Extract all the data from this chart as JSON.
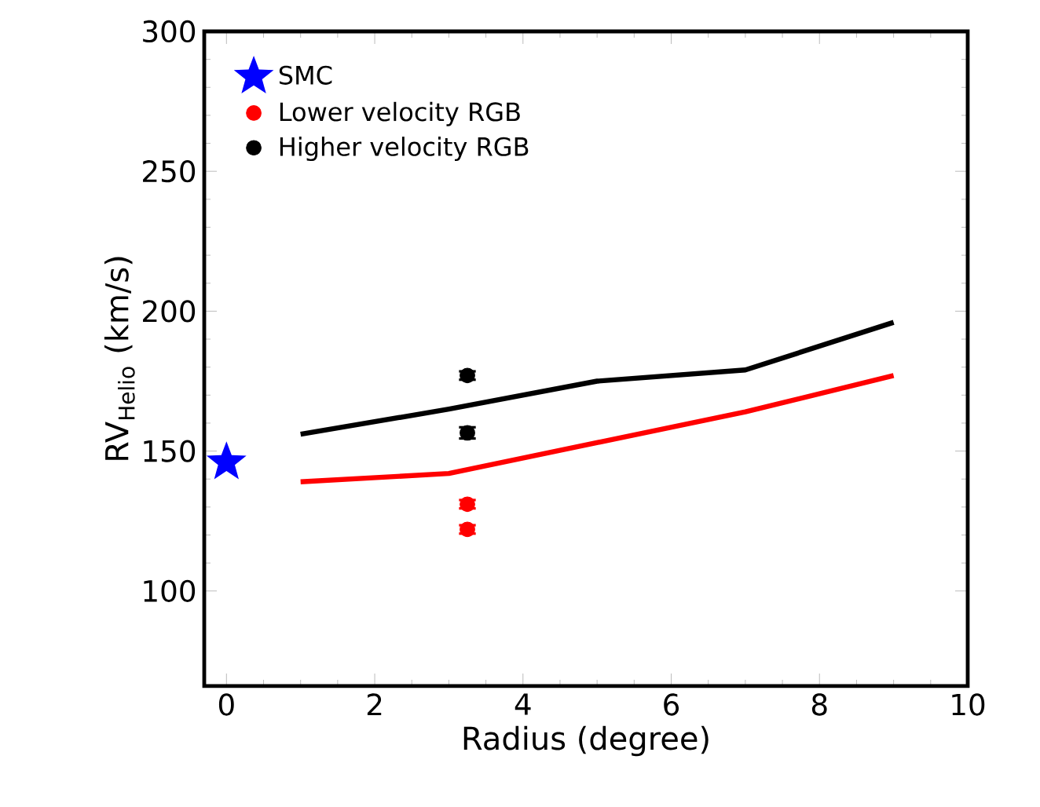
{
  "chart_data": {
    "type": "scatter",
    "xlabel": "Radius (degree)",
    "ylabel": "RV$_{Helio}$ (km/s)",
    "xlim": [
      -0.3,
      10
    ],
    "ylim": [
      66,
      300
    ],
    "xticks": [
      0,
      2,
      4,
      6,
      8,
      10
    ],
    "yticks": [
      100,
      150,
      200,
      250,
      300
    ],
    "grid": false,
    "legend": "top left",
    "series": [
      {
        "name": "SMC",
        "marker": "star",
        "color": "#0000ff",
        "x": [
          0
        ],
        "values": [
          146
        ]
      },
      {
        "name": "Lower  velocity RGB",
        "marker": "circle",
        "color": "#ff0000",
        "x": [
          3.25,
          3.25
        ],
        "values": [
          131,
          122
        ],
        "errors": [
          1.5,
          1.5
        ]
      },
      {
        "name": "Higher velocity RGB",
        "marker": "circle",
        "color": "#000000",
        "x": [
          3.25,
          3.25
        ],
        "values": [
          177,
          156.5
        ],
        "errors": [
          1.5,
          2
        ]
      },
      {
        "type": "line",
        "marker": "none",
        "line_style": "solid",
        "color": "#000000",
        "x": [
          1,
          3,
          5,
          7,
          9
        ],
        "values": [
          156,
          165,
          175,
          179,
          196
        ]
      },
      {
        "type": "line",
        "marker": "none",
        "line_style": "solid",
        "color": "#ff0000",
        "x": [
          1,
          3,
          5,
          7,
          9
        ],
        "values": [
          139,
          142,
          153,
          164,
          177
        ]
      }
    ]
  }
}
